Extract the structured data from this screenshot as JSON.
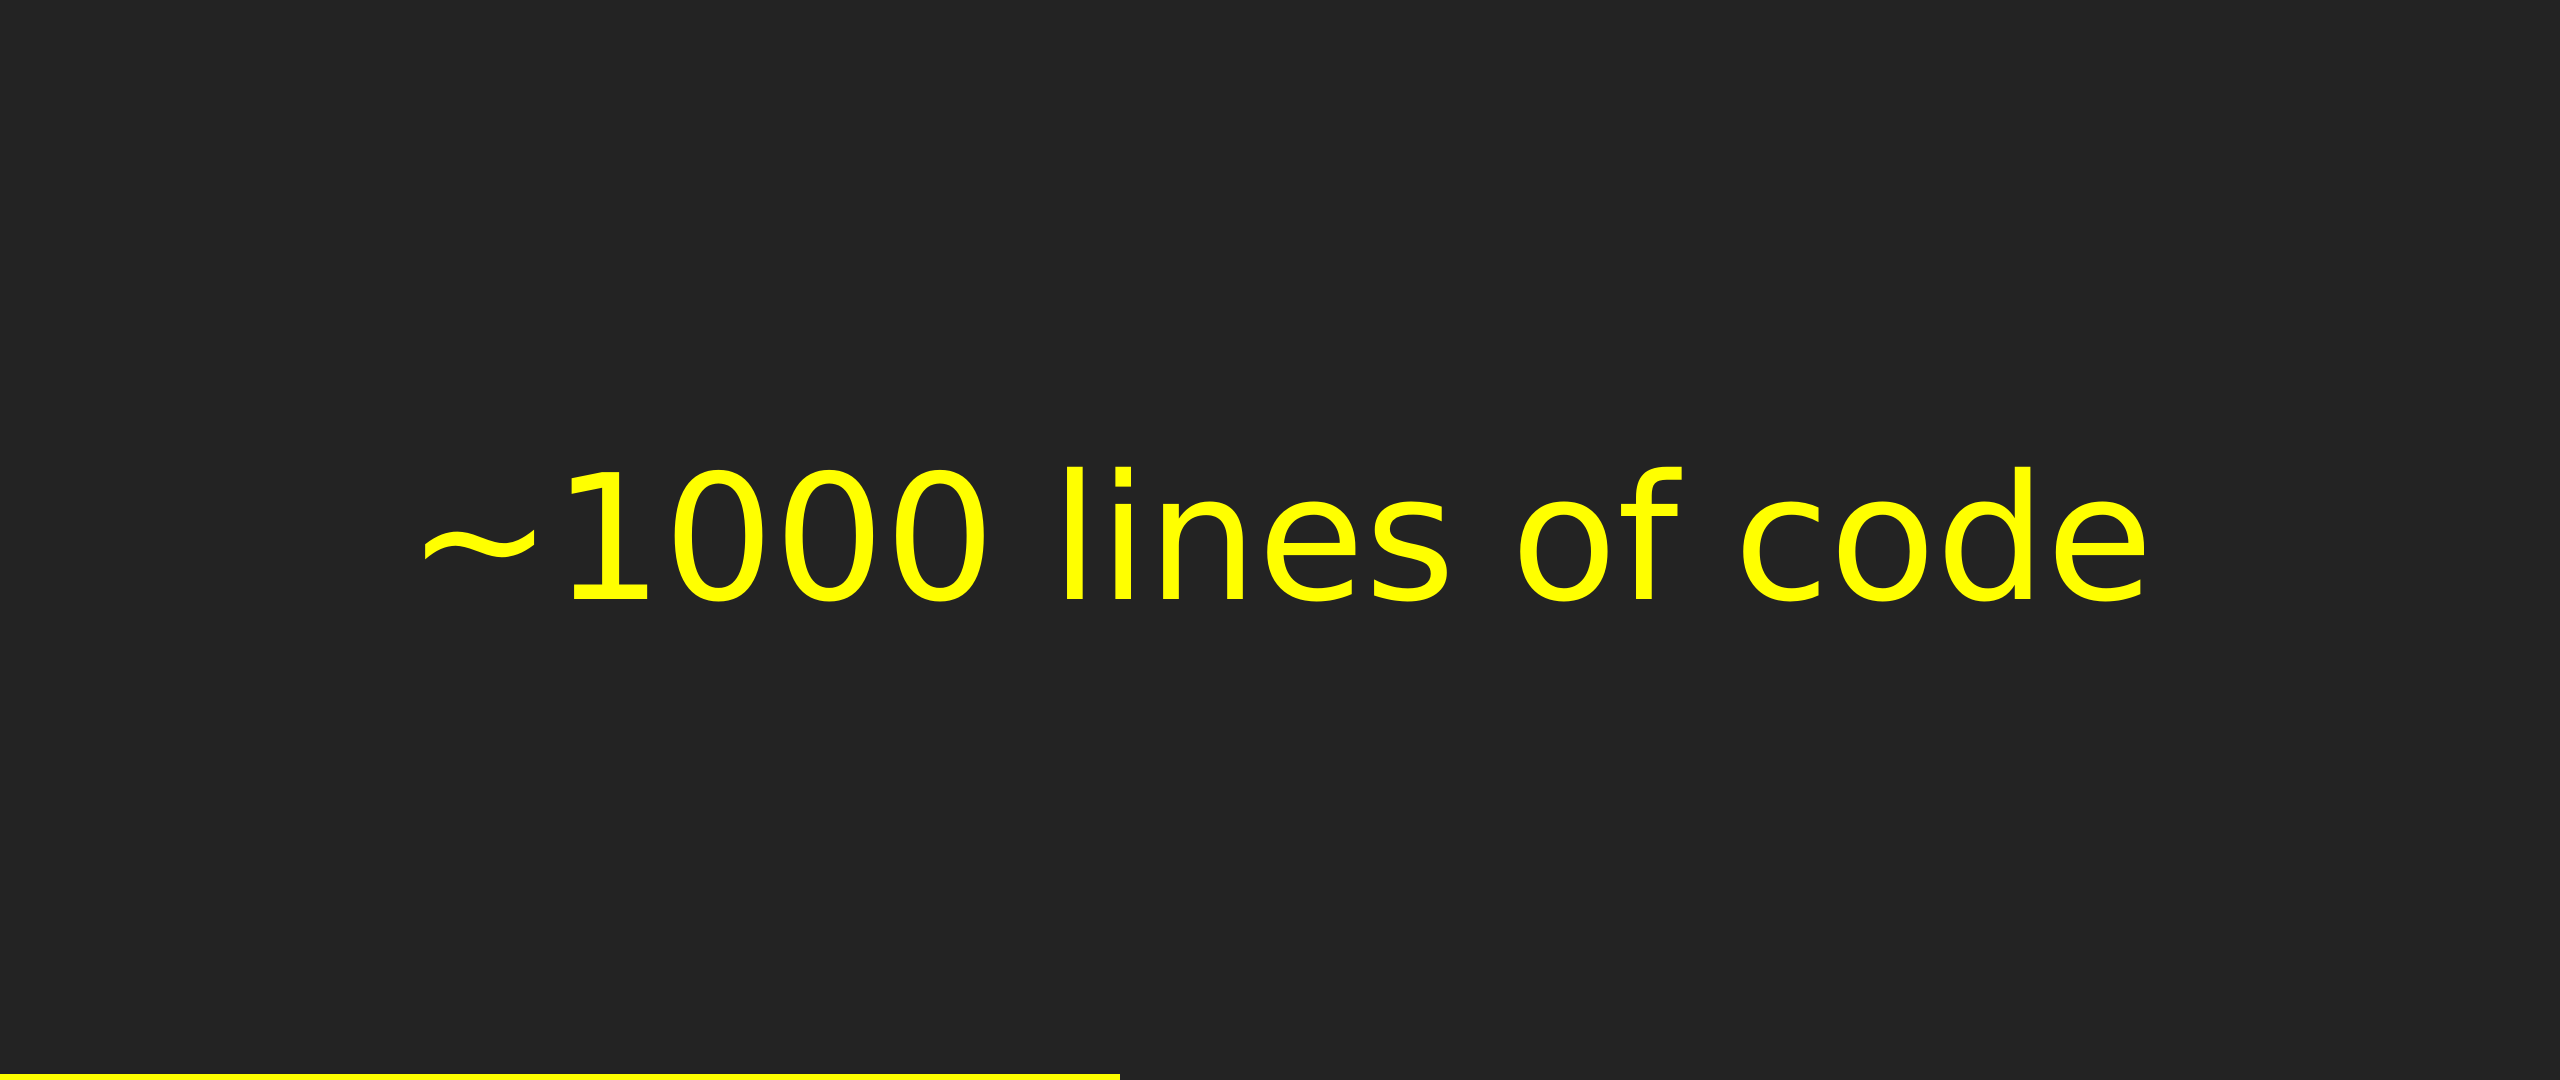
{
  "slide": {
    "text": "~1000 lines of code",
    "text_color": "#ffff00",
    "background_color": "#232323"
  },
  "progress": {
    "fraction": 0.4375,
    "color": "#ffff00"
  }
}
